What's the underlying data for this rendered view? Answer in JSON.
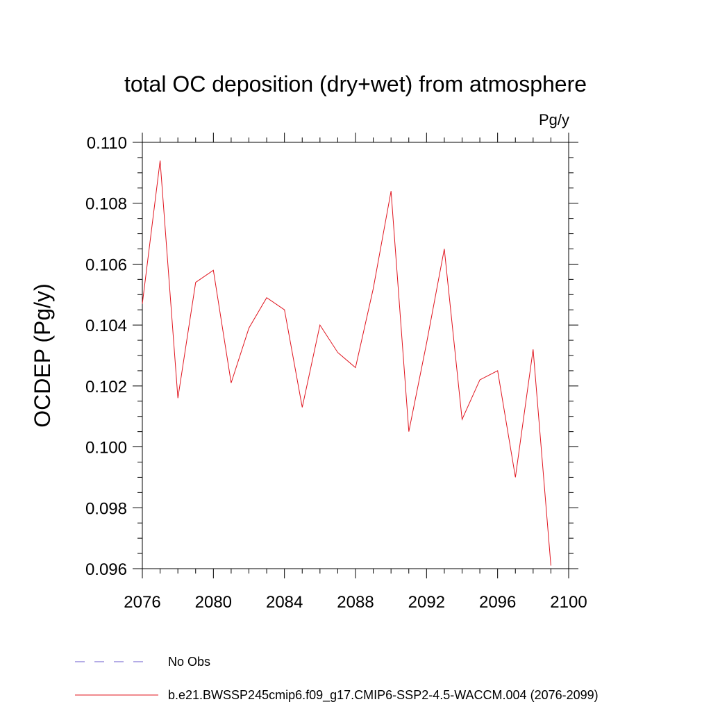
{
  "chart_data": {
    "type": "line",
    "title": "total OC deposition (dry+wet) from atmosphere",
    "units": "Pg/y",
    "ylabel": "OCDEP  (Pg/y)",
    "xlabel": "",
    "xlim": [
      2076,
      2100
    ],
    "ylim": [
      0.096,
      0.11
    ],
    "x_ticks": [
      2076,
      2080,
      2084,
      2088,
      2092,
      2096,
      2100
    ],
    "x_tick_labels": [
      "2076",
      "2080",
      "2084",
      "2088",
      "2092",
      "2096",
      "2100"
    ],
    "y_ticks": [
      0.096,
      0.098,
      0.1,
      0.102,
      0.104,
      0.106,
      0.108,
      0.11
    ],
    "y_tick_labels": [
      "0.096",
      "0.098",
      "0.100",
      "0.102",
      "0.104",
      "0.106",
      "0.108",
      "0.110"
    ],
    "grid": false,
    "legend_position": "bottom",
    "series": [
      {
        "name": "b.e21.BWSSP245cmip6.f09_g17.CMIP6-SSP2-4.5-WACCM.004 (2076-2099)",
        "color": "#e0141e",
        "x": [
          2076,
          2077,
          2078,
          2079,
          2080,
          2081,
          2082,
          2083,
          2084,
          2085,
          2086,
          2087,
          2088,
          2089,
          2090,
          2091,
          2092,
          2093,
          2094,
          2095,
          2096,
          2097,
          2098,
          2099
        ],
        "y": [
          0.1047,
          0.1094,
          0.1016,
          0.1054,
          0.1058,
          0.1021,
          0.1039,
          0.1049,
          0.1045,
          0.1013,
          0.104,
          0.1031,
          0.1026,
          0.1052,
          0.1084,
          0.1005,
          0.1034,
          0.1065,
          0.1009,
          0.1022,
          0.1025,
          0.099,
          0.1032,
          0.0961
        ]
      }
    ],
    "legend": [
      {
        "label": "No Obs",
        "style": "dashed",
        "color": "#6a5acd"
      },
      {
        "label": "b.e21.BWSSP245cmip6.f09_g17.CMIP6-SSP2-4.5-WACCM.004 (2076-2099)",
        "style": "solid",
        "color": "#e0141e"
      }
    ]
  }
}
